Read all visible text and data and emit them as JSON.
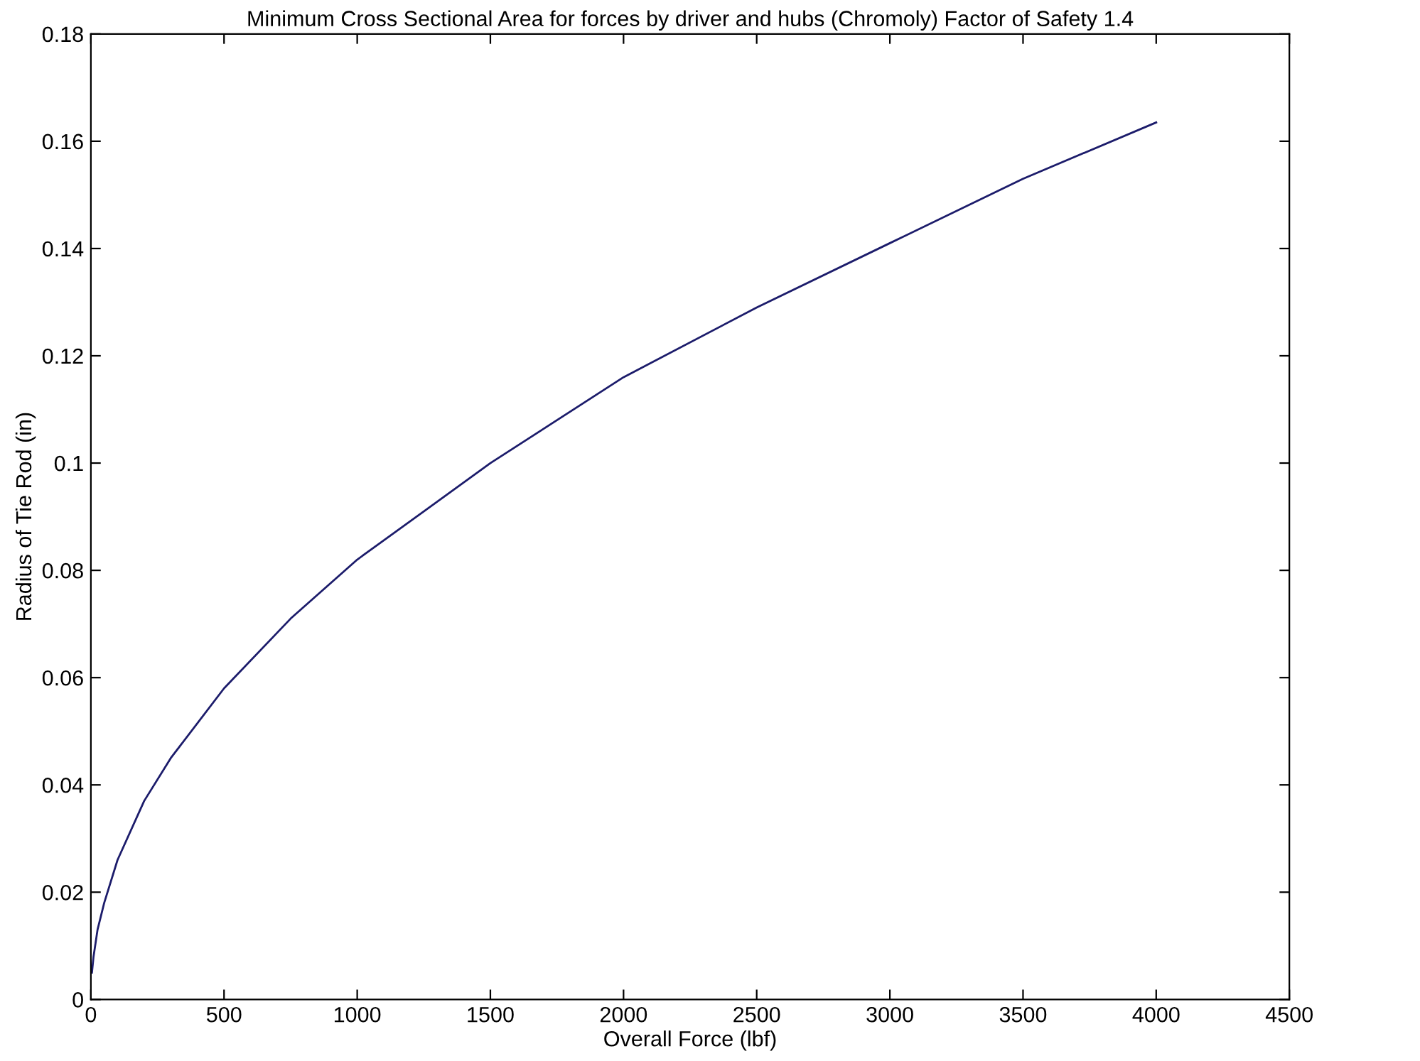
{
  "chart_data": {
    "type": "line",
    "title": "Minimum Cross Sectional Area for forces by driver and hubs (Chromoly) Factor of Safety 1.4",
    "xlabel": "Overall Force (lbf)",
    "ylabel": "Radius of Tie Rod (in)",
    "x": [
      4,
      10,
      25,
      50,
      100,
      200,
      300,
      500,
      750,
      1000,
      1250,
      1500,
      2000,
      2500,
      3000,
      3500,
      4000
    ],
    "series": [
      {
        "color": "#1c1c6b",
        "values": [
          0.005,
          0.008,
          0.013,
          0.018,
          0.026,
          0.037,
          0.045,
          0.058,
          0.071,
          0.082,
          0.091,
          0.1,
          0.116,
          0.129,
          0.141,
          0.153,
          0.1635
        ]
      }
    ],
    "xlim": [
      0,
      4500
    ],
    "xticks": [
      0,
      500,
      1000,
      1500,
      2000,
      2500,
      3000,
      3500,
      4000,
      4500
    ],
    "ylim": [
      0,
      0.18
    ],
    "yticks": [
      0,
      0.02,
      0.04,
      0.06,
      0.08,
      0.1,
      0.12,
      0.14,
      0.16,
      0.18
    ],
    "grid": false,
    "marker": "none",
    "line_style": "solid"
  }
}
